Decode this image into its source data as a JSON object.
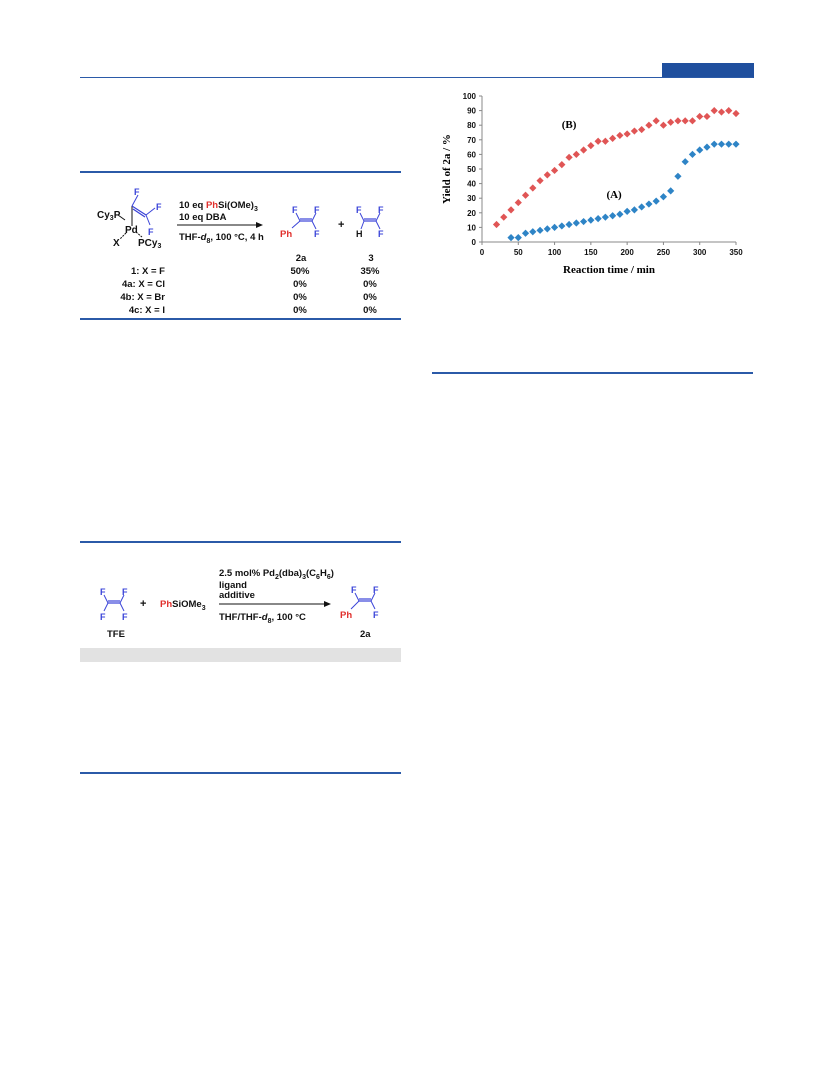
{
  "scheme1": {
    "reagent_line1_a": "10 eq ",
    "reagent_line1_ph": "Ph",
    "reagent_line1_b": "Si(OMe)",
    "reagent_line1_sub": "3",
    "reagent_line2": "10 eq DBA",
    "conditions_a": "THF-",
    "conditions_d": "d",
    "conditions_sub": "8",
    "conditions_b": ", 100 °C, 4 h",
    "complex": {
      "cy3p": "Cy",
      "cy3p_sub": "3",
      "cy3p_b": "P",
      "pd": "Pd",
      "x": "X",
      "pcy3": "PCy",
      "pcy3_sub": "3",
      "f": "F"
    },
    "product_2a_ph": "Ph",
    "product_3_h": "H",
    "plus": "+",
    "col_2a": "2a",
    "col_3": "3",
    "rows": [
      {
        "label": "1: X = F",
        "y2a": "50%",
        "y3": "35%"
      },
      {
        "label": "4a: X = Cl",
        "y2a": "0%",
        "y3": "0%"
      },
      {
        "label": "4b: X = Br",
        "y2a": "0%",
        "y3": "0%"
      },
      {
        "label": "4c: X = I",
        "y2a": "0%",
        "y3": "0%"
      }
    ]
  },
  "scheme2": {
    "tfe_label": "TFE",
    "plus": "+",
    "reagent_ph": "Ph",
    "reagent_rest": "SiOMe",
    "reagent_sub": "3",
    "cond_line1_a": "2.5 mol% Pd",
    "cond_line1_s1": "2",
    "cond_line1_b": "(dba)",
    "cond_line1_s2": "3",
    "cond_line1_c": "(C",
    "cond_line1_s3": "6",
    "cond_line1_d": "H",
    "cond_line1_s4": "6",
    "cond_line1_e": ")",
    "cond_line2": "ligand",
    "cond_line3": "additive",
    "cond_line4_a": "THF/THF-",
    "cond_line4_d": "d",
    "cond_line4_sub": "8",
    "cond_line4_b": ", 100 °C",
    "product_ph": "Ph",
    "product_label": "2a",
    "f": "F"
  },
  "chart_data": {
    "type": "scatter",
    "title": "",
    "xlabel": "Reaction time / min",
    "ylabel": "Yield of 2a / %",
    "xlim": [
      0,
      350
    ],
    "ylim": [
      0,
      100
    ],
    "xticks": [
      0,
      50,
      100,
      150,
      200,
      250,
      300,
      350
    ],
    "yticks": [
      0,
      10,
      20,
      30,
      40,
      50,
      60,
      70,
      80,
      90,
      100
    ],
    "grid": false,
    "series": [
      {
        "name": "(B)",
        "color": "#e05555",
        "marker": "diamond",
        "x": [
          20,
          30,
          40,
          50,
          60,
          70,
          80,
          90,
          100,
          110,
          120,
          130,
          140,
          150,
          160,
          170,
          180,
          190,
          200,
          210,
          220,
          230,
          240,
          250,
          260,
          270,
          280,
          290,
          300,
          310,
          320,
          330,
          340,
          350
        ],
        "y": [
          12,
          17,
          22,
          27,
          32,
          37,
          42,
          46,
          49,
          53,
          58,
          60,
          63,
          66,
          69,
          69,
          71,
          73,
          74,
          76,
          77,
          80,
          83,
          80,
          82,
          83,
          83,
          83,
          86,
          86,
          90,
          89,
          90,
          88
        ]
      },
      {
        "name": "(A)",
        "color": "#2e84c6",
        "marker": "diamond",
        "x": [
          40,
          50,
          60,
          70,
          80,
          90,
          100,
          110,
          120,
          130,
          140,
          150,
          160,
          170,
          180,
          190,
          200,
          210,
          220,
          230,
          240,
          250,
          260,
          270,
          280,
          290,
          300,
          310,
          320,
          330,
          340,
          350
        ],
        "y": [
          3,
          3,
          6,
          7,
          8,
          9,
          10,
          11,
          12,
          13,
          14,
          15,
          16,
          17,
          18,
          19,
          21,
          22,
          24,
          26,
          28,
          31,
          35,
          45,
          55,
          60,
          63,
          65,
          67,
          67,
          67,
          67
        ]
      }
    ],
    "annotations": [
      {
        "text": "(B)",
        "x": 120,
        "y": 78
      },
      {
        "text": "(A)",
        "x": 182,
        "y": 30
      }
    ]
  }
}
